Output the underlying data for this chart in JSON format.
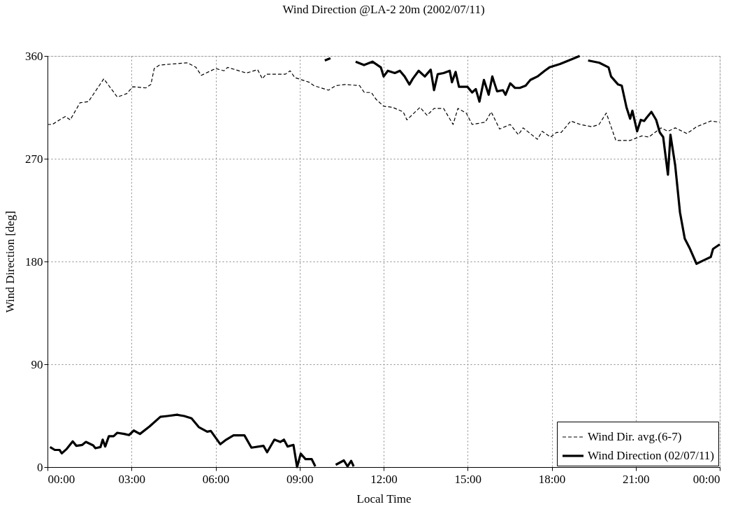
{
  "chart_data": {
    "type": "line",
    "title": "Wind Direction @LA-2 20m (2002/07/11)",
    "xlabel": "Local Time",
    "ylabel": "Wind Direction [deg]",
    "xlim": [
      0,
      24
    ],
    "ylim": [
      0,
      360
    ],
    "xticks": [
      {
        "value": 0,
        "label": "00:00"
      },
      {
        "value": 3,
        "label": "03:00"
      },
      {
        "value": 6,
        "label": "06:00"
      },
      {
        "value": 9,
        "label": "09:00"
      },
      {
        "value": 12,
        "label": "12:00"
      },
      {
        "value": 15,
        "label": "15:00"
      },
      {
        "value": 18,
        "label": "18:00"
      },
      {
        "value": 21,
        "label": "21:00"
      },
      {
        "value": 24,
        "label": "00:00"
      }
    ],
    "yticks": [
      0,
      90,
      180,
      270,
      360
    ],
    "grid": true,
    "legend": "bottom right",
    "marker": "none",
    "series": [
      {
        "name": "Wind Dir. avg.(6-7)",
        "color": "#000000",
        "line_style": "dashed",
        "x": [
          0,
          0.17,
          0.43,
          0.64,
          0.81,
          1.16,
          1.46,
          2.01,
          2.49,
          2.83,
          3.04,
          3.51,
          3.69,
          3.81,
          4.0,
          4.5,
          5.0,
          5.3,
          5.49,
          6.0,
          6.3,
          6.43,
          7.1,
          7.5,
          7.67,
          7.8,
          8.49,
          8.66,
          8.83,
          9.34,
          9.51,
          10.03,
          10.29,
          10.63,
          11.14,
          11.31,
          11.56,
          11.73,
          12.0,
          12.32,
          12.7,
          12.83,
          13.3,
          13.55,
          13.8,
          14.14,
          14.48,
          14.65,
          14.95,
          15.16,
          15.63,
          15.84,
          16.14,
          16.52,
          16.81,
          16.98,
          17.49,
          17.66,
          17.96,
          18.17,
          18.34,
          18.68,
          19.02,
          19.44,
          19.69,
          19.95,
          20.29,
          20.8,
          21.22,
          21.47,
          21.9,
          22.15,
          22.41,
          22.83,
          23.17,
          23.68,
          24.0
        ],
        "values": [
          300,
          300,
          304,
          307,
          304,
          319,
          320,
          340,
          324,
          327,
          333,
          332,
          335,
          349,
          352,
          353,
          354,
          350,
          343,
          349,
          347,
          350,
          345,
          348,
          340,
          344,
          344,
          347,
          341,
          337,
          334,
          330,
          334,
          335,
          334,
          328,
          328,
          322,
          316,
          315,
          311,
          304,
          315,
          308,
          314,
          314,
          300,
          314,
          310,
          300,
          302,
          311,
          296,
          300,
          291,
          297,
          287,
          294,
          289,
          293,
          293,
          303,
          300,
          298,
          300,
          310,
          286,
          286,
          290,
          289,
          297,
          294,
          297,
          292,
          298,
          303,
          302
        ]
      },
      {
        "name": "Wind Direction (02/07/11)",
        "color": "#000000",
        "line_style": "solid",
        "x": [
          0.09,
          0.26,
          0.43,
          0.51,
          0.69,
          0.9,
          1.03,
          1.24,
          1.37,
          1.63,
          1.71,
          1.89,
          1.97,
          2.06,
          2.19,
          2.36,
          2.49,
          2.74,
          2.91,
          3.08,
          3.3,
          3.64,
          4.03,
          4.28,
          4.63,
          4.88,
          5.14,
          5.4,
          5.7,
          5.83,
          6.17,
          6.38,
          6.64,
          7.03,
          7.28,
          7.71,
          7.84,
          8.1,
          8.31,
          8.44,
          8.57,
          8.78,
          8.91,
          9.04,
          9.21,
          9.43,
          9.56,
          9.7,
          9.9,
          10.1,
          10.2,
          10.29,
          10.58,
          10.71,
          10.84,
          10.93,
          10.97,
          11.0,
          11.3,
          11.6,
          11.9,
          12.0,
          12.15,
          12.4,
          12.58,
          12.75,
          12.92,
          13.04,
          13.25,
          13.47,
          13.68,
          13.8,
          13.93,
          14.14,
          14.36,
          14.44,
          14.57,
          14.69,
          14.82,
          14.99,
          15.16,
          15.29,
          15.42,
          15.58,
          15.75,
          15.88,
          16.05,
          16.26,
          16.35,
          16.52,
          16.69,
          16.86,
          17.07,
          17.24,
          17.49,
          17.75,
          17.92,
          18.3,
          18.7,
          19.0,
          19.1,
          19.3,
          19.7,
          20.03,
          20.12,
          20.37,
          20.5,
          20.67,
          20.8,
          20.88,
          21.05,
          21.18,
          21.3,
          21.39,
          21.56,
          21.73,
          21.86,
          21.98,
          22.15,
          22.24,
          22.41,
          22.58,
          22.75,
          22.92,
          23.17,
          23.42,
          23.68,
          23.76,
          24.0
        ],
        "values": [
          17.5,
          15,
          15,
          12,
          16,
          22.5,
          18.6,
          19.4,
          22,
          19,
          16.5,
          17.5,
          24,
          18,
          27,
          27,
          30,
          29,
          28,
          32,
          29,
          35.5,
          44,
          44.7,
          45.8,
          44.7,
          42.7,
          35,
          31,
          31.6,
          20,
          24,
          27.8,
          27.8,
          17,
          18.6,
          13,
          24,
          22,
          24,
          18,
          19.4,
          0,
          11.7,
          7,
          7,
          0.6,
          null,
          356,
          358,
          null,
          2,
          5.8,
          0.6,
          5.4,
          0.6,
          null,
          355,
          352,
          355,
          350,
          342,
          347,
          345,
          347,
          342,
          335,
          340,
          347,
          342,
          348,
          330,
          344,
          345,
          347,
          337,
          346,
          333,
          333,
          333,
          328,
          331,
          320,
          339,
          326,
          342,
          329,
          330,
          326,
          336,
          332,
          332,
          334,
          339,
          342,
          347,
          350,
          353,
          357,
          360,
          null,
          356,
          354,
          350,
          342,
          335,
          334,
          315,
          305,
          312,
          294,
          304,
          303,
          306,
          311,
          304,
          293,
          289,
          256,
          291,
          264,
          223,
          200,
          192,
          178,
          181,
          184,
          191,
          195
        ]
      }
    ]
  }
}
